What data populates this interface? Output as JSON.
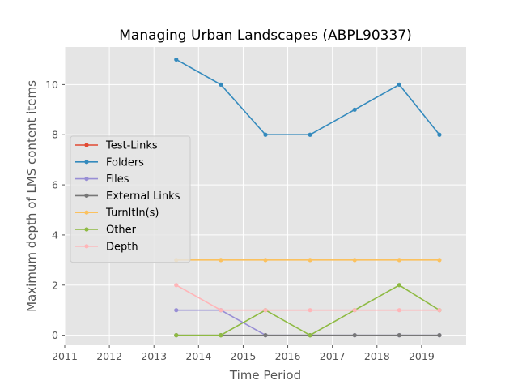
{
  "chart_data": {
    "type": "line",
    "title": "Managing Urban Landscapes (ABPL90337)",
    "xlabel": "Time Period",
    "ylabel": "Maximum depth of LMS content items",
    "xlim": [
      2011,
      2020
    ],
    "ylim": [
      -0.4,
      11.5
    ],
    "xticks": [
      2011,
      2012,
      2013,
      2014,
      2015,
      2016,
      2017,
      2018,
      2019
    ],
    "yticks": [
      0,
      2,
      4,
      6,
      8,
      10
    ],
    "x": [
      2013.5,
      2014.5,
      2015.5,
      2016.5,
      2017.5,
      2018.5,
      2019.4
    ],
    "grid": true,
    "legend_position": "center-left",
    "series": [
      {
        "name": "Test-Links",
        "color": "#e24a33",
        "values": [
          null,
          null,
          null,
          null,
          null,
          null,
          null
        ]
      },
      {
        "name": "Folders",
        "color": "#348abd",
        "values": [
          11,
          10,
          8,
          8,
          9,
          10,
          8
        ]
      },
      {
        "name": "Files",
        "color": "#988ed5",
        "values": [
          1,
          1,
          0,
          0,
          0,
          0,
          0
        ]
      },
      {
        "name": "External Links",
        "color": "#777777",
        "values": [
          0,
          0,
          0,
          0,
          0,
          0,
          0
        ]
      },
      {
        "name": "TurnItIn(s)",
        "color": "#fbc15e",
        "values": [
          3,
          3,
          3,
          3,
          3,
          3,
          3
        ]
      },
      {
        "name": "Other",
        "color": "#8eba42",
        "values": [
          0,
          0,
          1,
          0,
          1,
          2,
          1
        ]
      },
      {
        "name": "Depth",
        "color": "#ffb5b8",
        "values": [
          2,
          1,
          1,
          1,
          1,
          1,
          1
        ]
      }
    ]
  }
}
